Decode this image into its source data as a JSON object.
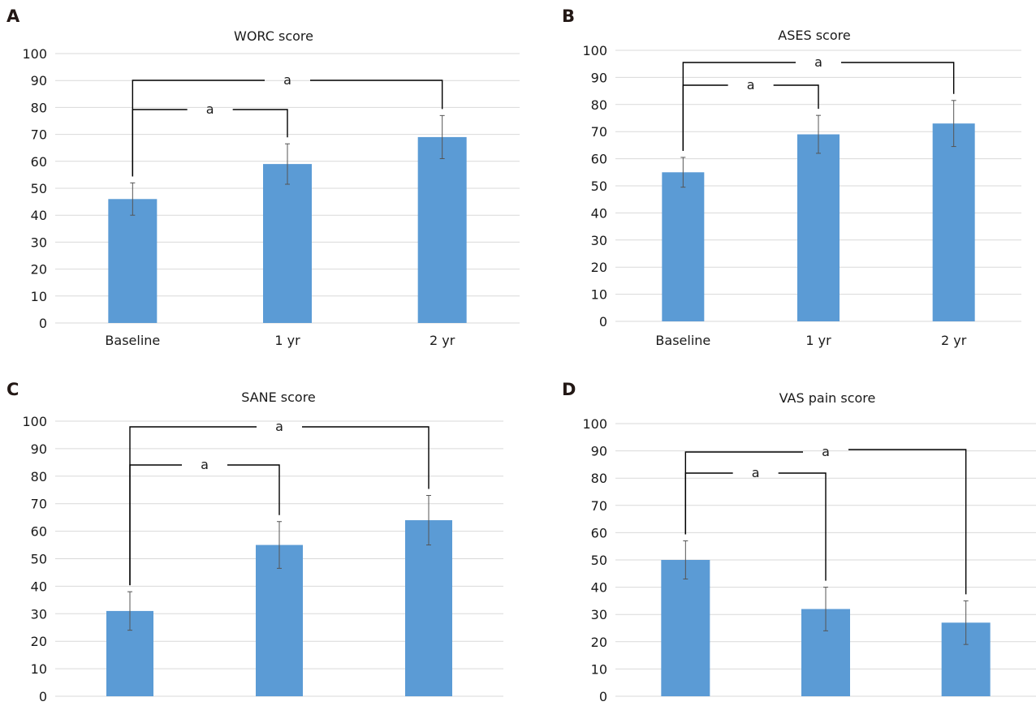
{
  "chart_data": [
    {
      "panel": "A",
      "type": "bar",
      "title": "WORC score",
      "categories": [
        "Baseline",
        "1 yr",
        "2 yr"
      ],
      "values": [
        46,
        59,
        69
      ],
      "error": [
        6,
        7.5,
        8
      ],
      "ylim": [
        0,
        100
      ],
      "yticks": [
        0,
        10,
        20,
        30,
        40,
        50,
        60,
        70,
        80,
        90,
        100
      ],
      "grid": true,
      "bar_color": "#5b9bd5",
      "significance": [
        {
          "from": 0,
          "to": 1,
          "label": "a"
        },
        {
          "from": 0,
          "to": 2,
          "label": "a"
        }
      ]
    },
    {
      "panel": "B",
      "type": "bar",
      "title": "ASES score",
      "categories": [
        "Baseline",
        "1 yr",
        "2 yr"
      ],
      "values": [
        55,
        69,
        73
      ],
      "error": [
        5.5,
        7,
        8.5
      ],
      "ylim": [
        0,
        100
      ],
      "yticks": [
        0,
        10,
        20,
        30,
        40,
        50,
        60,
        70,
        80,
        90,
        100
      ],
      "grid": true,
      "bar_color": "#5b9bd5",
      "significance": [
        {
          "from": 0,
          "to": 1,
          "label": "a"
        },
        {
          "from": 0,
          "to": 2,
          "label": "a"
        }
      ]
    },
    {
      "panel": "C",
      "type": "bar",
      "title": "SANE score",
      "categories": [
        "",
        "",
        ""
      ],
      "values": [
        31,
        55,
        64
      ],
      "error": [
        7,
        8.5,
        9
      ],
      "ylim": [
        0,
        100
      ],
      "yticks": [
        0,
        10,
        20,
        30,
        40,
        50,
        60,
        70,
        80,
        90,
        100
      ],
      "grid": true,
      "bar_color": "#5b9bd5",
      "significance": [
        {
          "from": 0,
          "to": 1,
          "label": "a"
        },
        {
          "from": 0,
          "to": 2,
          "label": "a"
        }
      ]
    },
    {
      "panel": "D",
      "type": "bar",
      "title": "VAS pain score",
      "categories": [
        "",
        "",
        ""
      ],
      "values": [
        50,
        32,
        27
      ],
      "error": [
        7,
        8,
        8
      ],
      "ylim": [
        0,
        100
      ],
      "yticks": [
        0,
        10,
        20,
        30,
        40,
        50,
        60,
        70,
        80,
        90,
        100
      ],
      "grid": true,
      "bar_color": "#5b9bd5",
      "significance": [
        {
          "from": 0,
          "to": 1,
          "label": "a"
        },
        {
          "from": 0,
          "to": 2,
          "label": "a"
        }
      ]
    }
  ]
}
